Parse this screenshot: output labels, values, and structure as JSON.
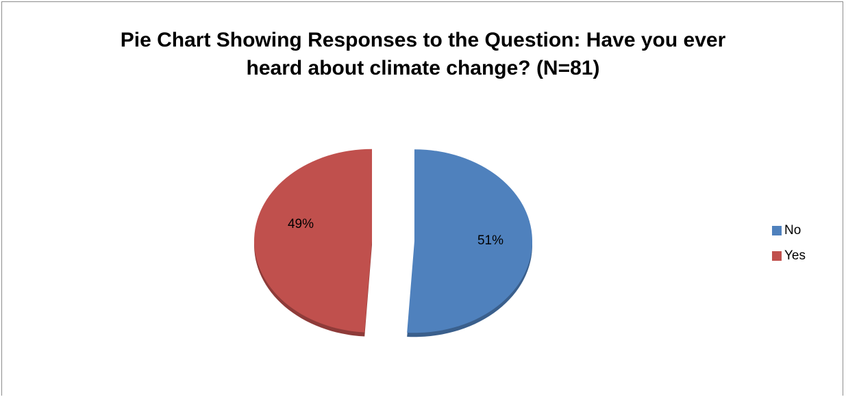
{
  "chart_data": {
    "type": "pie",
    "title_lines": [
      "Pie Chart Showing Responses to the Question: Have you ever",
      "heard about climate change? (N=81)"
    ],
    "categories": [
      "No",
      "Yes"
    ],
    "values": [
      51,
      49
    ],
    "labels": [
      "51%",
      "49%"
    ],
    "colors": [
      "#4f81bd",
      "#c0504d"
    ],
    "shadow_colors": [
      "#3a5f8c",
      "#8e3b39"
    ],
    "exploded": true,
    "legend": {
      "placement": "right",
      "items": [
        "No",
        "Yes"
      ]
    }
  }
}
